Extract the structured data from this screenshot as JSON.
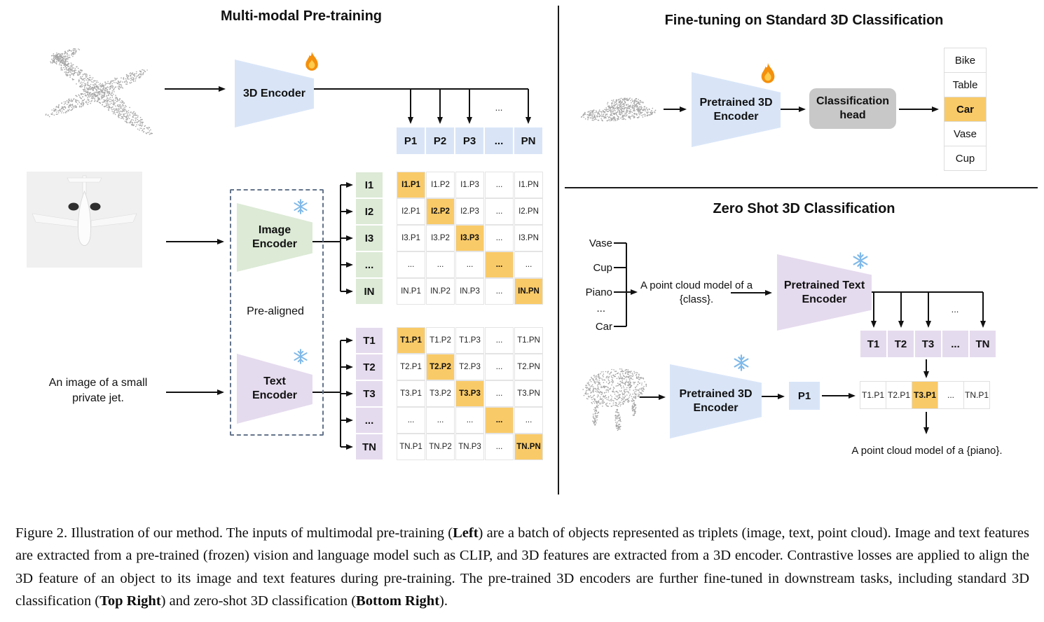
{
  "figure": {
    "pretraining": {
      "title": "Multi-modal Pre-training",
      "encoder3d_label": "3D Encoder",
      "image_encoder_label": "Image Encoder",
      "text_encoder_label": "Text Encoder",
      "pre_aligned_label": "Pre-aligned",
      "text_input": "An image of a small private jet.",
      "dots_above_pn": "...",
      "p_row": [
        "P1",
        "P2",
        "P3",
        "...",
        "PN"
      ],
      "i_labels": [
        "I1",
        "I2",
        "I3",
        "...",
        "IN"
      ],
      "t_labels": [
        "T1",
        "T2",
        "T3",
        "...",
        "TN"
      ],
      "i_matrix": [
        [
          "I1.P1",
          "I1.P2",
          "I1.P3",
          "...",
          "I1.PN"
        ],
        [
          "I2.P1",
          "I2.P2",
          "I2.P3",
          "...",
          "I2.PN"
        ],
        [
          "I3.P1",
          "I3.P2",
          "I3.P3",
          "...",
          "I3.PN"
        ],
        [
          "...",
          "...",
          "...",
          "...",
          "..."
        ],
        [
          "IN.P1",
          "IN.P2",
          "IN.P3",
          "...",
          "IN.PN"
        ]
      ],
      "t_matrix": [
        [
          "T1.P1",
          "T1.P2",
          "T1.P3",
          "...",
          "T1.PN"
        ],
        [
          "T2.P1",
          "T2.P2",
          "T2.P3",
          "...",
          "T2.PN"
        ],
        [
          "T3.P1",
          "T3.P2",
          "T3.P3",
          "...",
          "T3.PN"
        ],
        [
          "...",
          "...",
          "...",
          "...",
          "..."
        ],
        [
          "TN.P1",
          "TN.P2",
          "TN.P3",
          "...",
          "TN.PN"
        ]
      ]
    },
    "finetune": {
      "title": "Fine-tuning on Standard 3D Classification",
      "encoder_label": "Pretrained 3D Encoder",
      "head_label": "Classification head",
      "classes": [
        "Bike",
        "Table",
        "Car",
        "Vase",
        "Cup"
      ],
      "predicted_class": "Car"
    },
    "zeroshot": {
      "title": "Zero Shot 3D Classification",
      "classes": [
        "Vase",
        "Cup",
        "Piano",
        "...",
        "Car"
      ],
      "prompt": "A point cloud model of a {class}.",
      "text_encoder_label": "Pretrained Text Encoder",
      "encoder_label": "Pretrained 3D Encoder",
      "p_cell": "P1",
      "t_row": [
        "T1",
        "T2",
        "T3",
        "...",
        "TN"
      ],
      "dots_above_tn": "...",
      "sim_row": [
        "T1.P1",
        "T2.P1",
        "T3.P1",
        "...",
        "TN.P1"
      ],
      "matched_cell": "T3.P1",
      "result": "A point cloud model of a {piano}."
    },
    "caption": {
      "seg0": "Figure 2. Illustration of our method. The inputs of multimodal pre-training (",
      "seg1": "Left",
      "seg2": ") are a batch of objects represented as triplets (image, text, point cloud). Image and text features are extracted from a pre-trained (frozen) vision and language model such as CLIP, and 3D features are extracted from a 3D encoder. Contrastive losses are applied to align the 3D feature of an object to its image and text features during pre-training. The pre-trained 3D encoders are further fine-tuned in downstream tasks, including standard 3D classification (",
      "seg3": "Top Right",
      "seg4": ") and zero-shot 3D classification (",
      "seg5": "Bottom Right",
      "seg6": ")."
    },
    "colors": {
      "blue": "#D9E5F7",
      "green": "#DCEAD6",
      "purple": "#E5DBEE",
      "orange": "#F9CA68",
      "gray": "#C8C8C8"
    }
  }
}
